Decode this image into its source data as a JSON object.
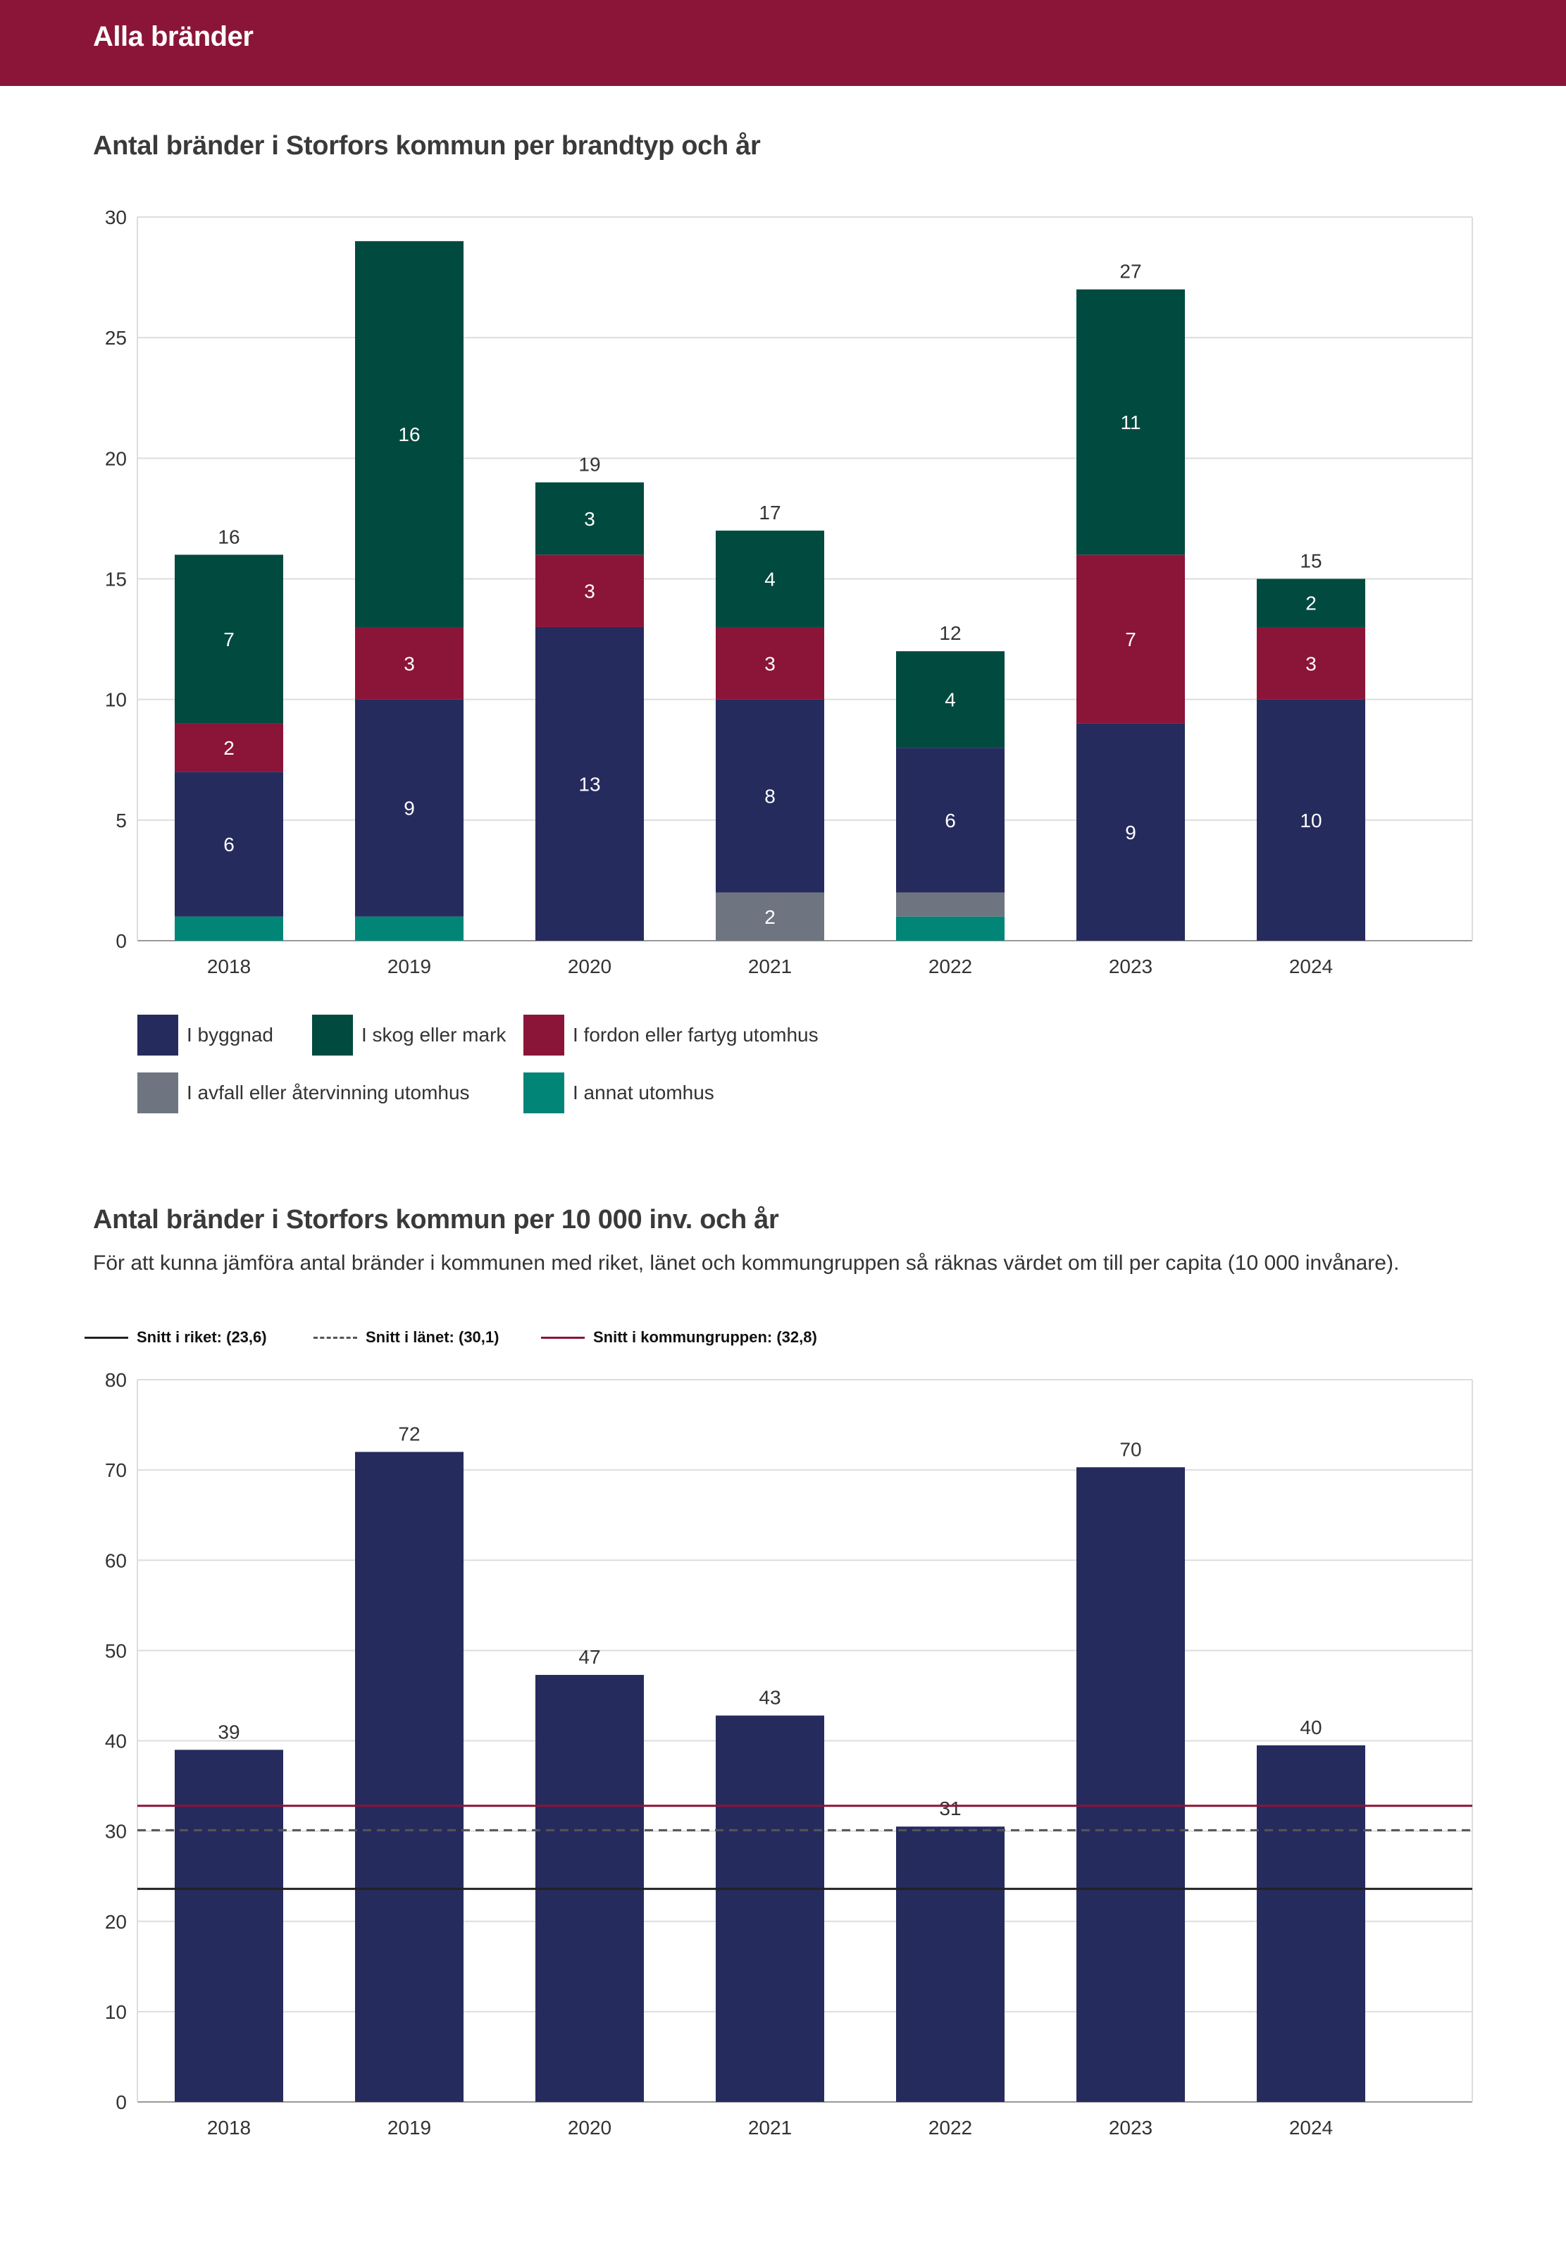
{
  "header": {
    "title": "Alla bränder"
  },
  "charts": {
    "stacked_title": "Antal bränder i Storfors kommun per brandtyp och år",
    "percapita_title": "Antal bränder i Storfors kommun per 10 000 inv. och år",
    "percapita_subtitle": "För att kunna jämföra antal bränder i kommunen med riket, länet och kommungruppen så räknas värdet om till per capita (10 000 invånare)."
  },
  "colors": {
    "header": "#8b1538",
    "byggnad": "#262b5e",
    "skog": "#014a40",
    "fordon": "#8b1538",
    "avfall": "#6e7580",
    "annat": "#008577",
    "riket": "#222222",
    "lanet": "#555555",
    "kommungrupp": "#8b1538"
  },
  "chart_data": [
    {
      "type": "bar",
      "stacked": true,
      "title": "Antal bränder i Storfors kommun per brandtyp och år",
      "categories": [
        "2018",
        "2019",
        "2020",
        "2021",
        "2022",
        "2023",
        "2024"
      ],
      "series": [
        {
          "name": "I annat utomhus",
          "color_key": "annat",
          "values": [
            1,
            1,
            0,
            0,
            1,
            0,
            0
          ],
          "labels": [
            "",
            "",
            "",
            "",
            "",
            "",
            ""
          ]
        },
        {
          "name": "I avfall eller återvinning utomhus",
          "color_key": "avfall",
          "values": [
            0,
            0,
            0,
            2,
            1,
            0,
            0
          ],
          "labels": [
            "",
            "",
            "",
            "2",
            "",
            "",
            ""
          ]
        },
        {
          "name": "I byggnad",
          "color_key": "byggnad",
          "values": [
            6,
            9,
            13,
            8,
            6,
            9,
            10
          ],
          "labels": [
            "6",
            "9",
            "13",
            "8",
            "6",
            "9",
            "10"
          ]
        },
        {
          "name": "I fordon eller fartyg utomhus",
          "color_key": "fordon",
          "values": [
            2,
            3,
            3,
            3,
            0,
            7,
            3
          ],
          "labels": [
            "2",
            "3",
            "3",
            "3",
            "",
            "7",
            "3"
          ]
        },
        {
          "name": "I skog eller mark",
          "color_key": "skog",
          "values": [
            7,
            16,
            3,
            4,
            4,
            11,
            2
          ],
          "labels": [
            "7",
            "16",
            "3",
            "4",
            "4",
            "11",
            "2"
          ]
        }
      ],
      "totals": [
        "16",
        "",
        "19",
        "17",
        "12",
        "27",
        "15"
      ],
      "ylim": [
        0,
        30
      ],
      "yticks": [
        "0",
        "5",
        "10",
        "15",
        "20",
        "25",
        "30"
      ],
      "legend": [
        {
          "label": "I byggnad",
          "color_key": "byggnad"
        },
        {
          "label": "I skog eller mark",
          "color_key": "skog"
        },
        {
          "label": "I fordon eller fartyg utomhus",
          "color_key": "fordon"
        },
        {
          "label": "I avfall eller återvinning utomhus",
          "color_key": "avfall"
        },
        {
          "label": "I annat utomhus",
          "color_key": "annat"
        }
      ],
      "legend_position": "bottom-left",
      "grid": true
    },
    {
      "type": "bar",
      "title": "Antal bränder i Storfors kommun per 10 000 inv. och år",
      "categories": [
        "2018",
        "2019",
        "2020",
        "2021",
        "2022",
        "2023",
        "2024"
      ],
      "values": [
        39,
        72,
        47.3,
        42.8,
        30.5,
        70.3,
        39.5
      ],
      "value_labels": [
        "39",
        "72",
        "47",
        "43",
        "31",
        "70",
        "40"
      ],
      "ylim": [
        0,
        80
      ],
      "yticks": [
        "0",
        "10",
        "20",
        "30",
        "40",
        "50",
        "60",
        "70",
        "80"
      ],
      "reference_lines": [
        {
          "label": "Snitt i riket: (23,6)",
          "value": 23.6,
          "style": "solid",
          "color_key": "riket"
        },
        {
          "label": "Snitt i länet: (30,1)",
          "value": 30.1,
          "style": "dashed",
          "color_key": "lanet"
        },
        {
          "label": "Snitt i kommungruppen: (32,8)",
          "value": 32.8,
          "style": "solid",
          "color_key": "kommungrupp"
        }
      ],
      "legend_position": "top-left",
      "grid": true
    }
  ]
}
